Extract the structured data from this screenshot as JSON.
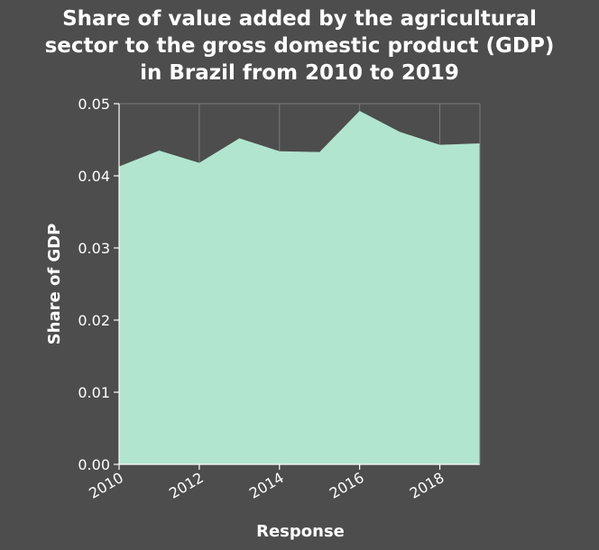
{
  "chart_data": {
    "type": "area",
    "title_lines": [
      "Share of value added by the agricultural",
      "sector to the gross domestic product (GDP)",
      "in Brazil from 2010 to 2019"
    ],
    "xlabel": "Response",
    "ylabel": "Share of GDP",
    "x": [
      2010,
      2011,
      2012,
      2013,
      2014,
      2015,
      2016,
      2017,
      2018,
      2019
    ],
    "values": [
      0.0413,
      0.0435,
      0.0418,
      0.0452,
      0.0434,
      0.0433,
      0.049,
      0.0461,
      0.0443,
      0.0445
    ],
    "xlim": [
      2010,
      2019
    ],
    "ylim": [
      0,
      0.05
    ],
    "x_ticks": [
      2010,
      2012,
      2014,
      2016,
      2018
    ],
    "y_ticks": [
      "0.00",
      "0.01",
      "0.02",
      "0.03",
      "0.04",
      "0.05"
    ],
    "grid": true,
    "fill_color": "#b2e5d0",
    "grid_color": "#7a7a7a",
    "background_color": "#4d4d4d"
  }
}
